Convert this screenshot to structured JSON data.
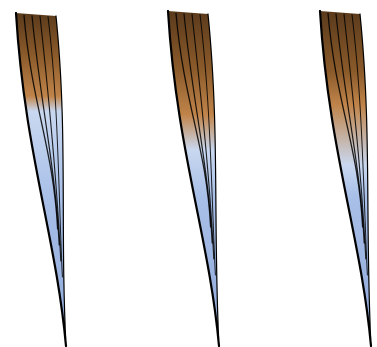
{
  "figure": {
    "description_free": true,
    "stroke_count": 3,
    "colors": {
      "background": "#ffffff",
      "outline": "#000000",
      "shaft_light": "#c9d8f0",
      "shaft_mid": "#a9c0e8",
      "shaft_dark": "#8ea8d8",
      "tip_dark": "#5a3a1c",
      "tip_mid": "#8a5a2a",
      "tip_light": "#c0844a"
    },
    "strokes": [
      {
        "id": "stroke-1",
        "brown_fill_fraction": 0.28,
        "blend": "hard"
      },
      {
        "id": "stroke-2",
        "brown_fill_fraction": 0.38,
        "blend": "medium"
      },
      {
        "id": "stroke-3",
        "brown_fill_fraction": 0.4,
        "blend": "soft"
      }
    ]
  }
}
